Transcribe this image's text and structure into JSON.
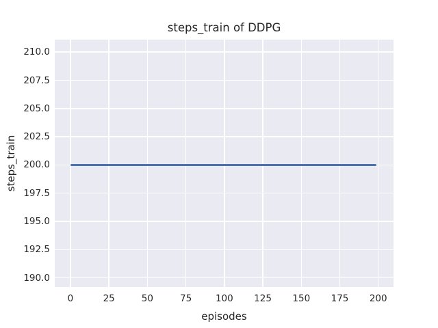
{
  "figure": {
    "background_color": "#ffffff",
    "axes_background_color": "#eaeaf2",
    "grid_color": "#ffffff",
    "text_color": "#262626"
  },
  "chart_data": {
    "type": "line",
    "title": "steps_train of DDPG",
    "xlabel": "episodes",
    "ylabel": "steps_train",
    "grid": true,
    "legend": null,
    "xlim": [
      -10.2,
      209.9
    ],
    "ylim": [
      189.2,
      211.1
    ],
    "x_ticks": [
      0,
      25,
      50,
      75,
      100,
      125,
      150,
      175,
      200
    ],
    "x_tick_labels": [
      "0",
      "25",
      "50",
      "75",
      "100",
      "125",
      "150",
      "175",
      "200"
    ],
    "y_ticks": [
      190.0,
      192.5,
      195.0,
      197.5,
      200.0,
      202.5,
      205.0,
      207.5,
      210.0
    ],
    "y_tick_labels": [
      "190.0",
      "192.5",
      "195.0",
      "197.5",
      "200.0",
      "202.5",
      "205.0",
      "207.5",
      "210.0"
    ],
    "series": [
      {
        "name": "steps_train",
        "color": "#4c72b0",
        "x": [
          0,
          199
        ],
        "y": [
          200,
          200
        ],
        "description": "constant line at steps_train = 200 for episodes 0 through 199"
      }
    ]
  }
}
